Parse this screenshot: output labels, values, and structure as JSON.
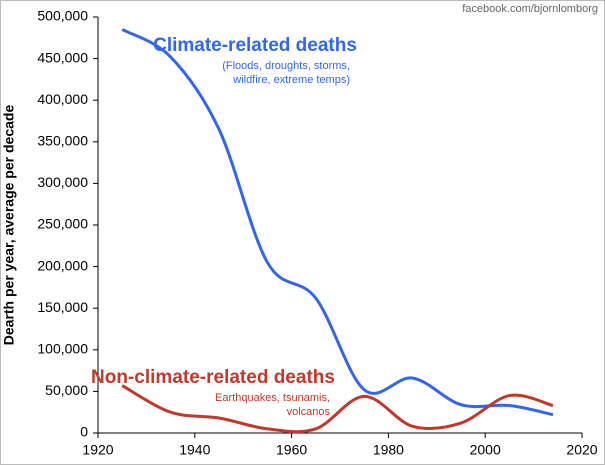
{
  "chart_data": {
    "type": "line",
    "source": "facebook.com/bjornlomborg",
    "ylabel": "Dearth per year, average per decade",
    "xlim": [
      1920,
      2020
    ],
    "xticks": [
      1920,
      1940,
      1960,
      1980,
      2000,
      2020
    ],
    "ylim": [
      0,
      500000
    ],
    "yticks": [
      0,
      {
        "value": 50000,
        "label": "50,000"
      },
      {
        "value": 100000,
        "label": "100,000"
      },
      {
        "value": 150000,
        "label": "150,000"
      },
      {
        "value": 200000,
        "label": "200,000"
      },
      {
        "value": 250000,
        "label": "250,000"
      },
      {
        "value": 300000,
        "label": "300,000"
      },
      {
        "value": 350000,
        "label": "350,000"
      },
      {
        "value": 400000,
        "label": "400,000"
      },
      {
        "value": 450000,
        "label": "450,000"
      },
      {
        "value": 500000,
        "label": "500,000"
      }
    ],
    "grid": false,
    "x": [
      1925,
      1935,
      1945,
      1955,
      1965,
      1975,
      1985,
      1995,
      2005,
      2014
    ],
    "series": [
      {
        "name": "Climate-related deaths",
        "color": "#3366ee",
        "description": [
          "(Floods, droughts, storms,",
          "wildfire, extreme temps)"
        ],
        "values": [
          485000,
          452000,
          365000,
          205000,
          162000,
          52000,
          66000,
          34000,
          33000,
          22000
        ]
      },
      {
        "name": "Non-climate-related deaths",
        "color": "#c0392b",
        "description": [
          "Earthquakes, tsunamis,",
          "volcanos"
        ],
        "values": [
          57000,
          25000,
          18000,
          5000,
          5000,
          44000,
          8000,
          12000,
          45000,
          33000
        ]
      }
    ]
  }
}
